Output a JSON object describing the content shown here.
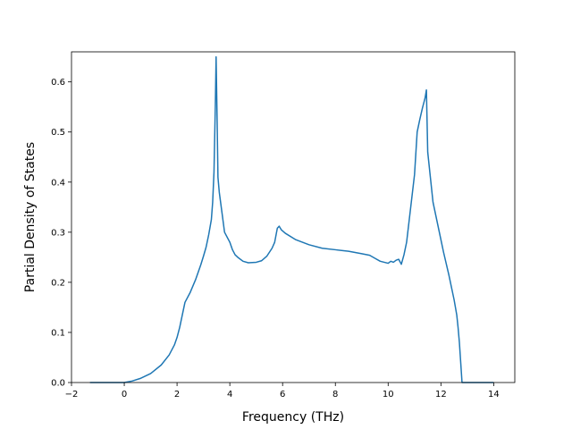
{
  "chart_data": {
    "type": "line",
    "title": "",
    "xlabel": "Frequency (THz)",
    "ylabel": "Partial Density of States",
    "xlim": [
      -2,
      14.8
    ],
    "ylim": [
      0,
      0.66
    ],
    "xticks": [
      -2,
      0,
      2,
      4,
      6,
      8,
      10,
      12,
      14
    ],
    "xtick_labels": [
      "−2",
      "0",
      "2",
      "4",
      "6",
      "8",
      "10",
      "12",
      "14"
    ],
    "yticks": [
      0.0,
      0.1,
      0.2,
      0.3,
      0.4,
      0.5,
      0.6
    ],
    "ytick_labels": [
      "0.0",
      "0.1",
      "0.2",
      "0.3",
      "0.4",
      "0.5",
      "0.6"
    ],
    "grid": false,
    "legend": "none",
    "color": "#1f77b4",
    "series": [
      {
        "x": [
          -1.3,
          0.0,
          0.3,
          0.6,
          1.0,
          1.4,
          1.7,
          1.9,
          2.0,
          2.1,
          2.2,
          2.3,
          2.5,
          2.7,
          2.9,
          3.0,
          3.1,
          3.2,
          3.3,
          3.35,
          3.4,
          3.45,
          3.48,
          3.52,
          3.55,
          3.6,
          3.7,
          3.8,
          4.0,
          4.1,
          4.2,
          4.3,
          4.5,
          4.7,
          5.0,
          5.2,
          5.4,
          5.6,
          5.7,
          5.8,
          5.87,
          5.95,
          6.1,
          6.5,
          7.0,
          7.5,
          8.0,
          8.5,
          9.0,
          9.3,
          9.5,
          9.7,
          10.0,
          10.1,
          10.2,
          10.3,
          10.4,
          10.5,
          10.6,
          10.7,
          10.8,
          10.9,
          11.0,
          11.1,
          11.2,
          11.3,
          11.4,
          11.45,
          11.5,
          11.6,
          11.7,
          11.9,
          12.1,
          12.3,
          12.5,
          12.6,
          12.65,
          12.7,
          12.75,
          12.8,
          13.0,
          14.0
        ],
        "y": [
          0.0,
          0.0,
          0.003,
          0.008,
          0.018,
          0.035,
          0.055,
          0.075,
          0.09,
          0.11,
          0.135,
          0.16,
          0.18,
          0.205,
          0.235,
          0.252,
          0.27,
          0.295,
          0.325,
          0.36,
          0.42,
          0.55,
          0.65,
          0.52,
          0.41,
          0.38,
          0.34,
          0.3,
          0.28,
          0.265,
          0.255,
          0.25,
          0.242,
          0.239,
          0.24,
          0.243,
          0.252,
          0.268,
          0.28,
          0.308,
          0.312,
          0.305,
          0.298,
          0.285,
          0.275,
          0.268,
          0.265,
          0.262,
          0.257,
          0.254,
          0.248,
          0.242,
          0.238,
          0.242,
          0.24,
          0.244,
          0.246,
          0.236,
          0.255,
          0.28,
          0.325,
          0.37,
          0.415,
          0.5,
          0.525,
          0.548,
          0.568,
          0.584,
          0.46,
          0.41,
          0.36,
          0.31,
          0.26,
          0.215,
          0.165,
          0.135,
          0.11,
          0.08,
          0.04,
          0.0,
          0.0,
          0.0
        ]
      }
    ]
  }
}
